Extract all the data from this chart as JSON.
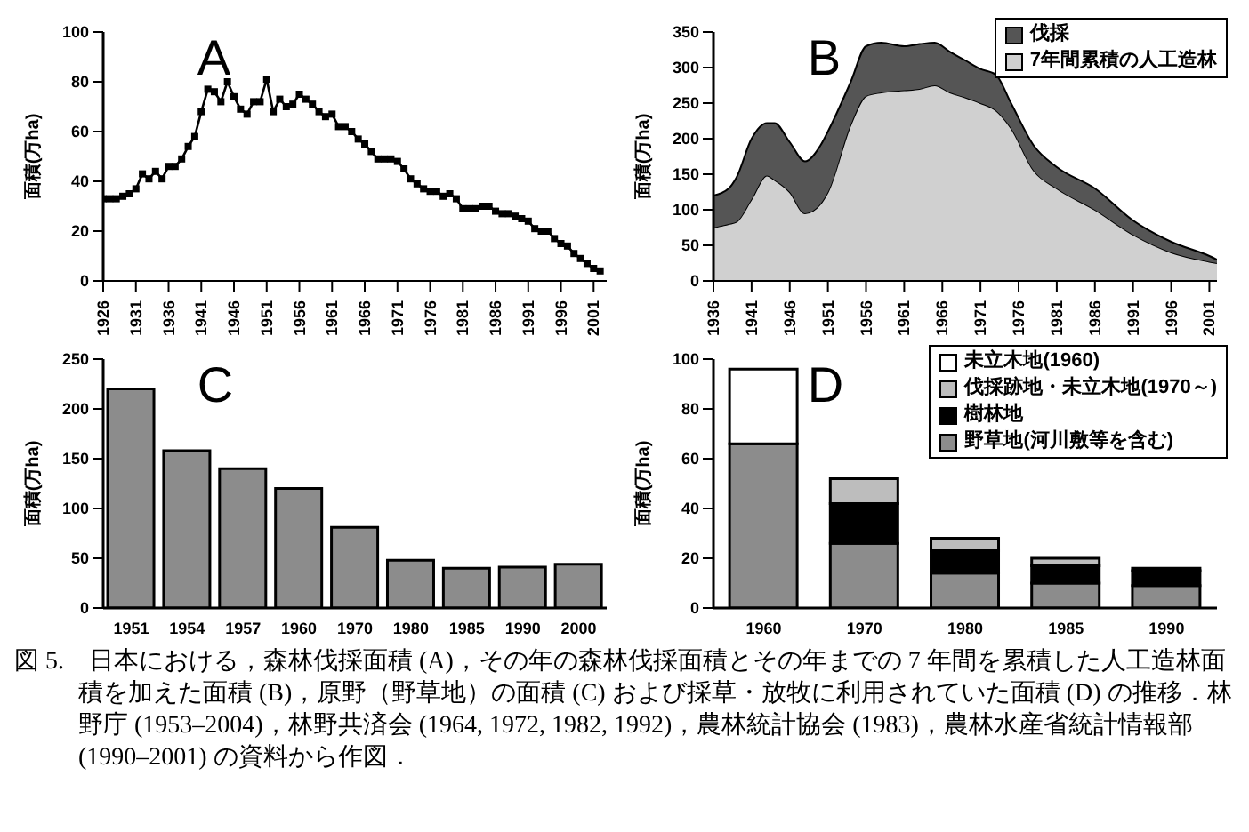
{
  "chart_data": [
    {
      "type": "line",
      "title": "A",
      "ylabel": "面積(万ha)",
      "x": [
        1926,
        1927,
        1928,
        1929,
        1930,
        1931,
        1932,
        1933,
        1934,
        1935,
        1936,
        1937,
        1938,
        1939,
        1940,
        1941,
        1942,
        1943,
        1944,
        1945,
        1946,
        1947,
        1948,
        1949,
        1950,
        1951,
        1952,
        1953,
        1954,
        1955,
        1956,
        1957,
        1958,
        1959,
        1960,
        1961,
        1962,
        1963,
        1964,
        1965,
        1966,
        1967,
        1968,
        1969,
        1970,
        1971,
        1972,
        1973,
        1974,
        1975,
        1976,
        1977,
        1978,
        1979,
        1980,
        1981,
        1982,
        1983,
        1984,
        1985,
        1986,
        1987,
        1988,
        1989,
        1990,
        1991,
        1992,
        1993,
        1994,
        1995,
        1996,
        1997,
        1998,
        1999,
        2000,
        2001,
        2002
      ],
      "values": [
        33,
        33,
        33,
        34,
        35,
        37,
        43,
        41,
        44,
        41,
        46,
        46,
        49,
        54,
        58,
        68,
        77,
        76,
        72,
        80,
        74,
        69,
        67,
        72,
        72,
        81,
        68,
        73,
        70,
        71,
        75,
        73,
        71,
        68,
        66,
        67,
        62,
        62,
        60,
        57,
        55,
        52,
        49,
        49,
        49,
        48,
        45,
        41,
        39,
        37,
        36,
        36,
        34,
        35,
        33,
        29,
        29,
        29,
        30,
        30,
        28,
        27,
        27,
        26,
        25,
        24,
        21,
        20,
        20,
        17,
        15,
        14,
        11,
        9,
        7,
        5,
        4
      ],
      "color": "#000000",
      "marker": "square",
      "line_style": "solid",
      "xlim": [
        1926,
        2003
      ],
      "xticks": [
        1926,
        1931,
        1936,
        1941,
        1946,
        1951,
        1956,
        1961,
        1966,
        1971,
        1976,
        1981,
        1986,
        1991,
        1996,
        2001
      ],
      "ylim": [
        0,
        100
      ],
      "yticks": [
        0,
        20,
        40,
        60,
        80,
        100
      ]
    },
    {
      "type": "area",
      "title": "B",
      "ylabel": "面積(万ha)",
      "stacked": true,
      "legend": "top right",
      "x": [
        1936,
        1938,
        1939,
        1941,
        1943,
        1944,
        1946,
        1948,
        1950,
        1951,
        1954,
        1956,
        1958,
        1961,
        1963,
        1965,
        1967,
        1969,
        1971,
        1973,
        1975,
        1978,
        1981,
        1986,
        1991,
        1996,
        2001,
        2002
      ],
      "series": [
        {
          "name": "7年間累積の人工造林",
          "color": "#d0d0d0",
          "values": [
            75,
            80,
            83,
            115,
            148,
            142,
            125,
            95,
            108,
            125,
            220,
            260,
            265,
            268,
            270,
            275,
            265,
            258,
            250,
            240,
            215,
            155,
            130,
            100,
            65,
            40,
            27,
            25
          ]
        },
        {
          "name": "伐採",
          "color": "#555555",
          "values": [
            45,
            50,
            62,
            85,
            74,
            80,
            70,
            73,
            82,
            85,
            60,
            70,
            70,
            62,
            63,
            60,
            57,
            52,
            48,
            50,
            35,
            35,
            30,
            30,
            20,
            15,
            8,
            5
          ]
        }
      ],
      "xlim": [
        1936,
        2002
      ],
      "xticks": [
        1936,
        1941,
        1946,
        1951,
        1956,
        1961,
        1966,
        1971,
        1976,
        1981,
        1986,
        1991,
        1996,
        2001
      ],
      "ylim": [
        0,
        350
      ],
      "yticks": [
        0,
        50,
        100,
        150,
        200,
        250,
        300,
        350
      ]
    },
    {
      "type": "bar",
      "title": "C",
      "ylabel": "面積(万ha)",
      "categories": [
        "1951",
        "1954",
        "1957",
        "1960",
        "1970",
        "1980",
        "1985",
        "1990",
        "2000"
      ],
      "values": [
        220,
        158,
        140,
        120,
        81,
        48,
        40,
        41,
        44
      ],
      "color": "#8c8c8c",
      "ylim": [
        0,
        250
      ],
      "yticks": [
        0,
        50,
        100,
        150,
        200,
        250
      ]
    },
    {
      "type": "bar",
      "title": "D",
      "ylabel": "面積(万ha)",
      "stacked": true,
      "legend": "top right",
      "categories": [
        "1960",
        "1970",
        "1980",
        "1985",
        "1990"
      ],
      "series": [
        {
          "name": "野草地(河川敷等を含む)",
          "color": "#8c8c8c",
          "values": [
            66,
            26,
            14,
            10,
            9
          ]
        },
        {
          "name": "樹林地",
          "color": "#000000",
          "values": [
            null,
            16,
            9,
            7,
            6
          ]
        },
        {
          "name": "伐採跡地・未立木地(1970～)",
          "color": "#bdbdbd",
          "values": [
            null,
            10,
            5,
            3,
            1
          ]
        },
        {
          "name": "未立木地(1960)",
          "color": "#ffffff",
          "values": [
            30,
            null,
            null,
            null,
            null
          ]
        }
      ],
      "ylim": [
        0,
        100
      ],
      "yticks": [
        0,
        20,
        40,
        60,
        80,
        100
      ],
      "annotations": [
        "図 5.　日本における，森林伐採面積 (A)，その年の森林伐採面積とその年までの 7 年間を累積した人工造林面積を加えた面積 (B)，原野（野草地）の面積 (C) および採草・放牧に利用されていた面積 (D) の推移．林野庁 (1953–2004)，林野共済会 (1964, 1972, 1982, 1992)，農林統計協会 (1983)，農林水産省統計情報部 (1990–2001) の資料から作図．"
      ]
    }
  ]
}
